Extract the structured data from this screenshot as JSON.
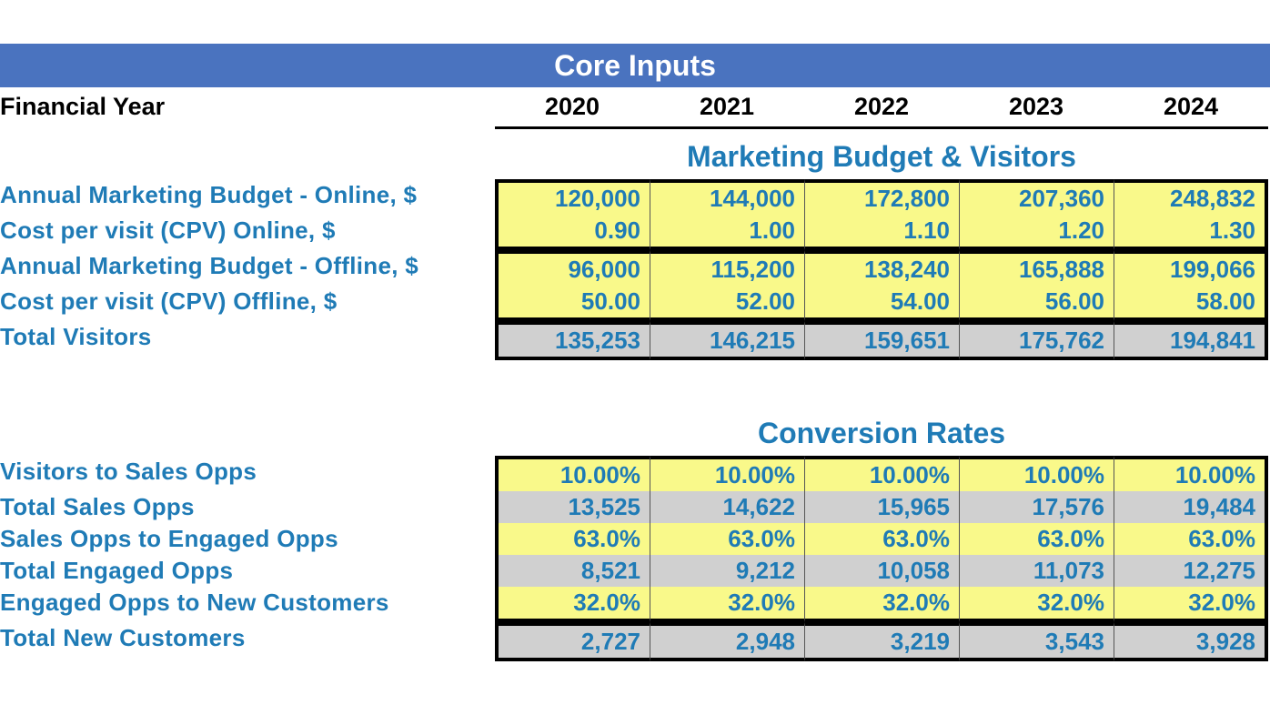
{
  "colors": {
    "header_bg": "#4a73bf",
    "accent_text": "#1f7bb6",
    "yellow_bg": "#f9f98a",
    "gray_bg": "#d0d0d0",
    "black": "#000000"
  },
  "header": {
    "title": "Core Inputs"
  },
  "financial_year": {
    "label": "Financial Year",
    "years": [
      "2020",
      "2021",
      "2022",
      "2023",
      "2024"
    ]
  },
  "section1": {
    "title": "Marketing Budget & Visitors",
    "rows": [
      {
        "label": "Annual Marketing Budget - Online, $",
        "style": "yellow",
        "values": [
          "120,000",
          "144,000",
          "172,800",
          "207,360",
          "248,832"
        ],
        "top": true
      },
      {
        "label": "Cost per visit (CPV) Online, $",
        "style": "yellow",
        "values": [
          "0.90",
          "1.00",
          "1.10",
          "1.20",
          "1.30"
        ],
        "bottom": true
      },
      {
        "label": "Annual Marketing Budget - Offline, $",
        "style": "yellow",
        "values": [
          "96,000",
          "115,200",
          "138,240",
          "165,888",
          "199,066"
        ],
        "top": true
      },
      {
        "label": "Cost per visit (CPV) Offline, $",
        "style": "yellow",
        "values": [
          "50.00",
          "52.00",
          "54.00",
          "56.00",
          "58.00"
        ],
        "bottom": true
      },
      {
        "label": "Total Visitors",
        "style": "gray",
        "values": [
          "135,253",
          "146,215",
          "159,651",
          "175,762",
          "194,841"
        ],
        "top": true,
        "bottom": true
      }
    ]
  },
  "section2": {
    "title": "Conversion Rates",
    "rows": [
      {
        "label": "Visitors to Sales Opps",
        "style": "yellow",
        "values": [
          "10.00%",
          "10.00%",
          "10.00%",
          "10.00%",
          "10.00%"
        ],
        "top": true
      },
      {
        "label": "Total Sales Opps",
        "style": "gray",
        "values": [
          "13,525",
          "14,622",
          "15,965",
          "17,576",
          "19,484"
        ]
      },
      {
        "label": "Sales Opps to Engaged Opps",
        "style": "yellow",
        "values": [
          "63.0%",
          "63.0%",
          "63.0%",
          "63.0%",
          "63.0%"
        ]
      },
      {
        "label": "Total Engaged Opps",
        "style": "gray",
        "values": [
          "8,521",
          "9,212",
          "10,058",
          "11,073",
          "12,275"
        ]
      },
      {
        "label": "Engaged Opps to New Customers",
        "style": "yellow",
        "values": [
          "32.0%",
          "32.0%",
          "32.0%",
          "32.0%",
          "32.0%"
        ],
        "bottom": true
      },
      {
        "label": "Total New Customers",
        "style": "gray",
        "values": [
          "2,727",
          "2,948",
          "3,219",
          "3,543",
          "3,928"
        ],
        "top": true,
        "bottom": true
      }
    ]
  }
}
